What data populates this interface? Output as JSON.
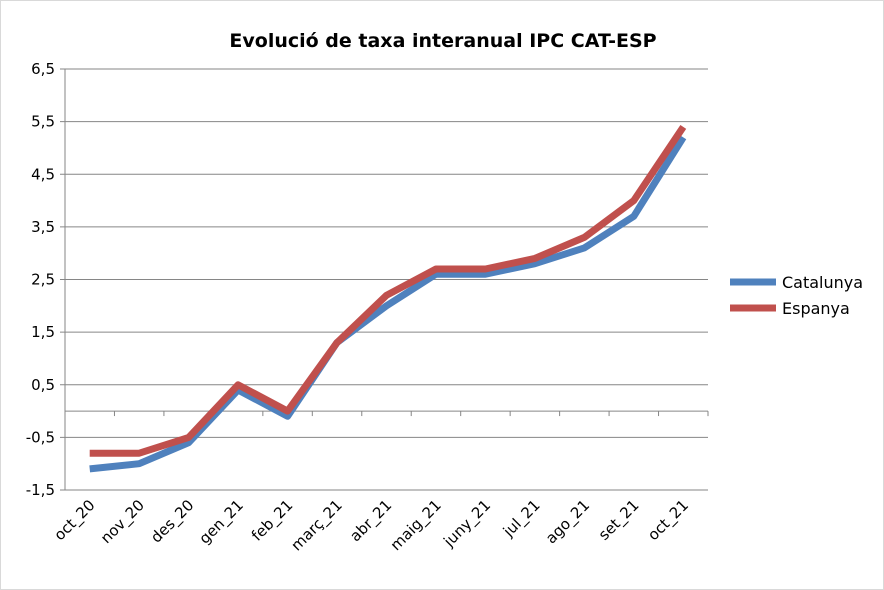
{
  "chart_data": {
    "type": "line",
    "title": "Evolució de taxa interanual IPC CAT-ESP",
    "categories": [
      "oct_20",
      "nov_20",
      "des_20",
      "gen_21",
      "feb_21",
      "març_21",
      "abr_21",
      "maig_21",
      "juny_21",
      "jul_21",
      "ago_21",
      "set_21",
      "oct_21"
    ],
    "yticks": [
      "6,5",
      "5,5",
      "4,5",
      "3,5",
      "2,5",
      "1,5",
      "0,5",
      "-0,5",
      "-1,5"
    ],
    "ylim": [
      -1.5,
      6.5
    ],
    "grid": true,
    "legend_position": "right",
    "series": [
      {
        "name": "Catalunya",
        "color": "#4f81bd",
        "values": [
          -1.1,
          -1.0,
          -0.6,
          0.4,
          -0.1,
          1.3,
          2.0,
          2.6,
          2.6,
          2.8,
          3.1,
          3.7,
          5.2
        ]
      },
      {
        "name": "Espanya",
        "color": "#c0504d",
        "values": [
          -0.8,
          -0.8,
          -0.5,
          0.5,
          0.0,
          1.3,
          2.2,
          2.7,
          2.7,
          2.9,
          3.3,
          4.0,
          5.4
        ]
      }
    ]
  }
}
